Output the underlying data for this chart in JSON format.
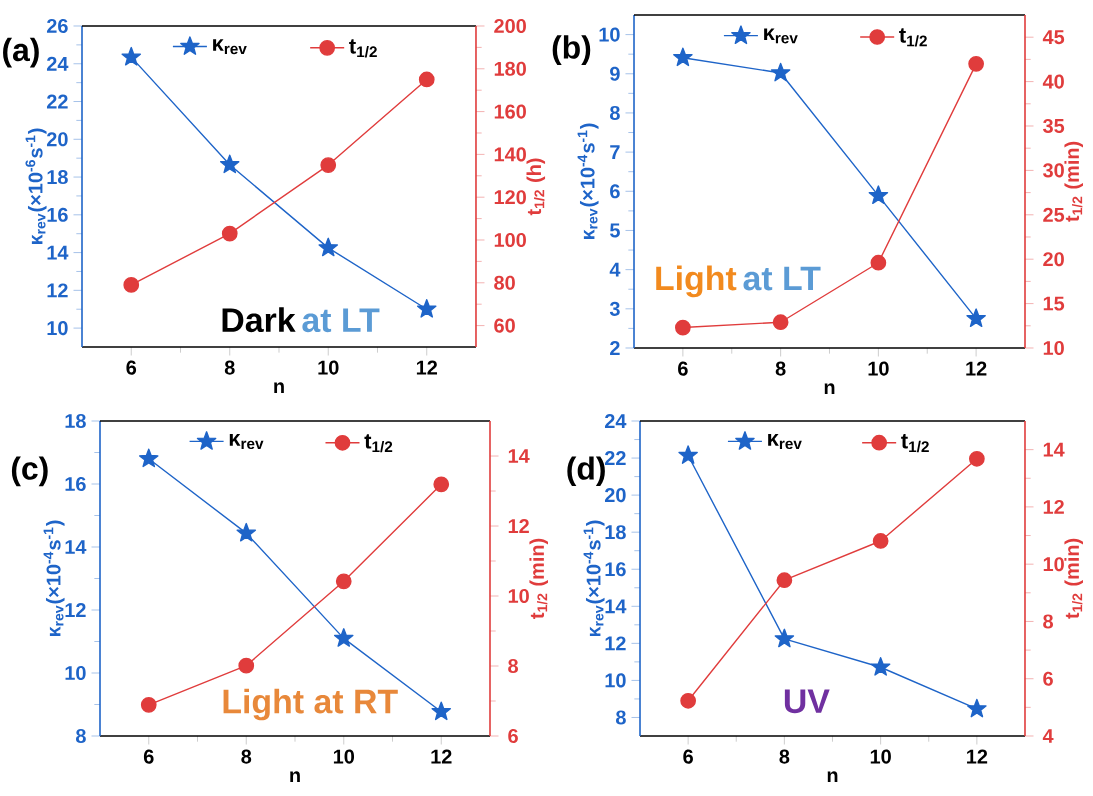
{
  "chart_data": [
    {
      "type": "line",
      "title": "(a)",
      "xlabel": "n",
      "ylabel": "κ$_{rev}$(×10$^{-6}$s$^{-1}$)",
      "y2label": "t$_{1/2}$ (h)",
      "x": [
        6,
        8,
        10,
        12
      ],
      "xlim": [
        5,
        13
      ],
      "xticks": [
        6,
        8,
        10,
        12
      ],
      "ylim": [
        9,
        26
      ],
      "yticks": [
        10,
        12,
        14,
        16,
        18,
        20,
        22,
        24,
        26
      ],
      "y2lim": [
        50,
        200
      ],
      "y2ticks": [
        60,
        80,
        100,
        120,
        140,
        160,
        180,
        200
      ],
      "legend": "top",
      "grid": false,
      "line_style": "solid",
      "series": [
        {
          "name": "κ$_{rev}$",
          "color": "#1e64c8",
          "marker": "star",
          "values": [
            24.35,
            18.65,
            14.25,
            11.0
          ]
        },
        {
          "name": "t$_{1/2}$",
          "color": "#e03c3c",
          "marker": "circle",
          "axis": "y2",
          "values": [
            79,
            103,
            135,
            175
          ]
        }
      ],
      "annotations": [
        "Dark",
        "at LT"
      ]
    },
    {
      "type": "line",
      "title": "(b)",
      "xlabel": "n",
      "ylabel": "κ$_{rev}$(×10$^{-4}$s$^{-1}$)",
      "y2label": "t$_{1/2}$ (min)",
      "x": [
        6,
        8,
        10,
        12
      ],
      "xlim": [
        5,
        13
      ],
      "xticks": [
        6,
        8,
        10,
        12
      ],
      "ylim": [
        2,
        10.5
      ],
      "yticks": [
        2,
        3,
        4,
        5,
        6,
        7,
        8,
        9,
        10
      ],
      "y2lim": [
        10,
        47.5
      ],
      "y2ticks": [
        10,
        15,
        20,
        25,
        30,
        35,
        40,
        45
      ],
      "legend": "top",
      "grid": false,
      "line_style": "solid",
      "series": [
        {
          "name": "κ$_{rev}$",
          "color": "#1e64c8",
          "marker": "star",
          "values": [
            9.41,
            9.02,
            5.89,
            2.75
          ]
        },
        {
          "name": "t$_{1/2}$",
          "color": "#e03c3c",
          "marker": "circle",
          "axis": "y2",
          "values": [
            12.3,
            12.9,
            19.6,
            42.0
          ]
        }
      ],
      "annotations": [
        "Light",
        "at LT"
      ]
    },
    {
      "type": "line",
      "title": "(c)",
      "xlabel": "n",
      "ylabel": "κ$_{rev}$(×10$^{-4}$s$^{-1}$)",
      "y2label": "t$_{1/2}$ (min)",
      "x": [
        6,
        8,
        10,
        12
      ],
      "xlim": [
        5,
        13
      ],
      "xticks": [
        6,
        8,
        10,
        12
      ],
      "ylim": [
        8,
        18
      ],
      "yticks": [
        8,
        10,
        12,
        14,
        16,
        18
      ],
      "y2lim": [
        6,
        15
      ],
      "y2ticks": [
        6,
        8,
        10,
        12,
        14
      ],
      "legend": "top",
      "grid": false,
      "line_style": "solid",
      "series": [
        {
          "name": "κ$_{rev}$",
          "color": "#1e64c8",
          "marker": "star",
          "values": [
            16.8,
            14.44,
            11.1,
            8.77
          ]
        },
        {
          "name": "t$_{1/2}$",
          "color": "#e03c3c",
          "marker": "circle",
          "axis": "y2",
          "values": [
            6.89,
            8.01,
            10.42,
            13.19
          ]
        }
      ],
      "annotations": [
        "Light at RT"
      ]
    },
    {
      "type": "line",
      "title": "(d)",
      "xlabel": "n",
      "ylabel": "κ$_{rev}$(×10$^{-4}$s$^{-1}$)",
      "y2label": "t$_{1/2}$ (min)",
      "x": [
        6,
        8,
        10,
        12
      ],
      "xlim": [
        5,
        13
      ],
      "xticks": [
        6,
        8,
        10,
        12
      ],
      "ylim": [
        7,
        24
      ],
      "yticks": [
        8,
        10,
        12,
        14,
        16,
        18,
        20,
        22,
        24
      ],
      "y2lim": [
        4,
        15
      ],
      "y2ticks": [
        4,
        6,
        8,
        10,
        12,
        14
      ],
      "legend": "top",
      "grid": false,
      "line_style": "solid",
      "series": [
        {
          "name": "κ$_{rev}$",
          "color": "#1e64c8",
          "marker": "star",
          "values": [
            22.14,
            12.24,
            10.71,
            8.46
          ]
        },
        {
          "name": "t$_{1/2}$",
          "color": "#e03c3c",
          "marker": "circle",
          "axis": "y2",
          "values": [
            5.23,
            9.44,
            10.81,
            13.68
          ]
        }
      ],
      "annotations": [
        "UV"
      ]
    }
  ]
}
